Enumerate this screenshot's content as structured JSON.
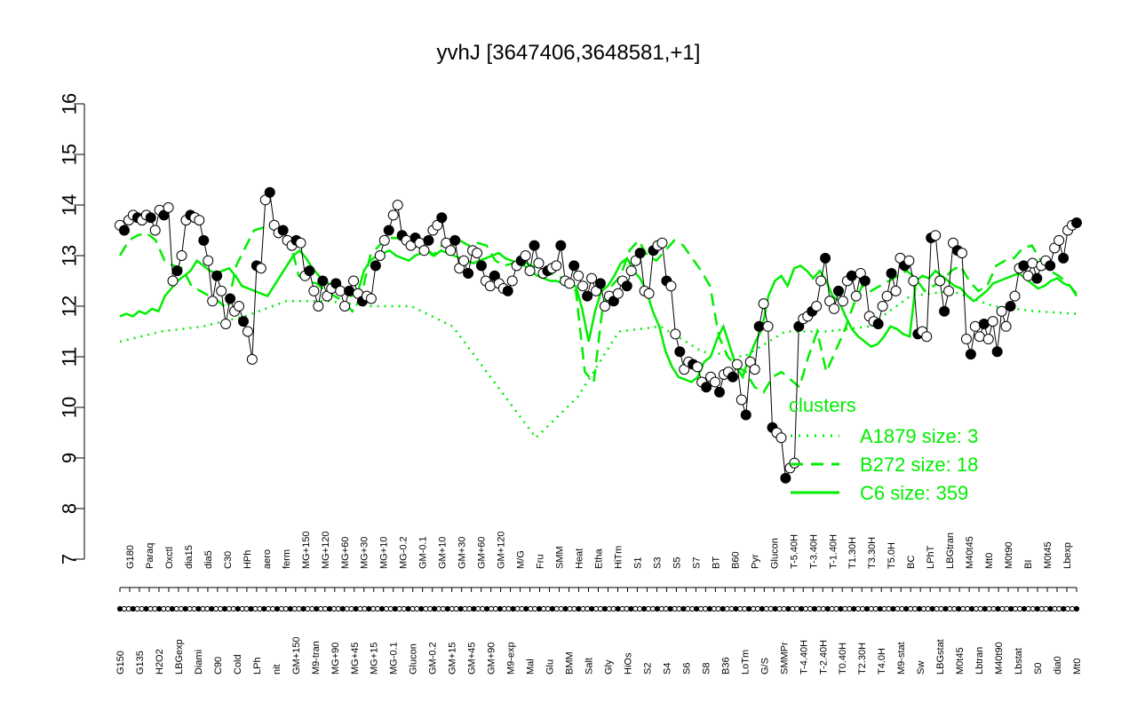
{
  "chart_data": {
    "type": "scatter",
    "title": "yvhJ [3647406,3648581,+1]",
    "xlabel": "",
    "ylabel": "",
    "ylim": [
      7,
      16
    ],
    "yticks": [
      7,
      8,
      9,
      10,
      11,
      12,
      13,
      14,
      15,
      16
    ],
    "grid": false,
    "x_tick_labels": [
      "G150",
      "G180",
      "G135",
      "Paraq",
      "H2O2",
      "Oxctl",
      "LBGexp",
      "dia15",
      "Diami",
      "dia5",
      "C90",
      "C30",
      "Cold",
      "HPh",
      "LPh",
      "aero",
      "nit",
      "ferm",
      "GM+150",
      "MG+150",
      "M9-tran",
      "MG+120",
      "MG+90",
      "MG+60",
      "MG+45",
      "MG+30",
      "MG+15",
      "MG+10",
      "MG-0.1",
      "MG-0.2",
      "Glucon",
      "GM-0.1",
      "GM-0.2",
      "GM+10",
      "GM+15",
      "GM+30",
      "GM+45",
      "GM+60",
      "GM+90",
      "GM+120",
      "M9-exp",
      "M/G",
      "Mal",
      "Fru",
      "Glu",
      "SMM",
      "BMM",
      "Heat",
      "Salt",
      "Etha",
      "Gly",
      "HiTm",
      "HiOs",
      "S1",
      "S2",
      "S3",
      "S4",
      "S5",
      "S6",
      "S7",
      "S8",
      "BT",
      "B36",
      "B60",
      "LoTm",
      "Pyr",
      "G/S",
      "Glucon",
      "SMMPr",
      "T-5.40H",
      "T-4.40H",
      "T-3.40H",
      "T-2.40H",
      "T-1.40H",
      "T0.40H",
      "T1.30H",
      "T2.30H",
      "T3.30H",
      "T4.0H",
      "T5.0H",
      "M9-stat",
      "BC",
      "Sw",
      "LPhT",
      "LBGstat",
      "LBGtran",
      "M0t45",
      "M40t45",
      "Lbtran",
      "Mt0",
      "M40t90",
      "M0t90",
      "Lbstat",
      "BI",
      "S0",
      "M0t45",
      "dia0",
      "Lbexp",
      "Mt0"
    ],
    "series": [
      {
        "kind": "points",
        "values": [
          13.6,
          13.5,
          13.7,
          13.8,
          13.75,
          13.7,
          13.8,
          13.75,
          13.5,
          13.9,
          13.8,
          13.95,
          12.5,
          12.7,
          13.0,
          13.7,
          13.8,
          13.75,
          13.7,
          13.3,
          12.9,
          12.1,
          12.6,
          12.3,
          11.65,
          12.15,
          11.9,
          12.0,
          11.7,
          11.5,
          10.95,
          12.8,
          12.75,
          14.1,
          14.25,
          13.6,
          13.45,
          13.5,
          13.3,
          13.2,
          13.3,
          13.25,
          12.6,
          12.7,
          12.3,
          12.0,
          12.5,
          12.2,
          12.35,
          12.45,
          12.3,
          12.0,
          12.3,
          12.5,
          12.25,
          12.1,
          12.2,
          12.15,
          12.8,
          13.0,
          13.3,
          13.5,
          13.8,
          14.0,
          13.4,
          13.3,
          13.2,
          13.35,
          13.25,
          13.1,
          13.3,
          13.5,
          13.6,
          13.75,
          13.25,
          13.1,
          13.3,
          12.75,
          12.9,
          12.65,
          13.1,
          13.05,
          12.8,
          12.5,
          12.4,
          12.6,
          12.45,
          12.35,
          12.3,
          12.5,
          12.8,
          12.9,
          13.0,
          12.7,
          13.2,
          12.85,
          12.65,
          12.7,
          12.75,
          12.8,
          13.2,
          12.5,
          12.45,
          12.8,
          12.6,
          12.4,
          12.2,
          12.55,
          12.3,
          12.45,
          12.0,
          12.2,
          12.1,
          12.25,
          12.5,
          12.4,
          12.7,
          12.9,
          13.05,
          12.3,
          12.25,
          13.1,
          13.2,
          13.25,
          12.5,
          12.4,
          11.45,
          11.1,
          10.75,
          10.9,
          10.85,
          10.8,
          10.5,
          10.4,
          10.6,
          10.5,
          10.3,
          10.65,
          10.7,
          10.6,
          10.85,
          10.15,
          9.85,
          10.9,
          10.75,
          11.6,
          12.05,
          11.6,
          9.6,
          9.5,
          9.4,
          8.6,
          8.8,
          8.9,
          11.6,
          11.75,
          11.8,
          11.9,
          12.0,
          12.5,
          12.95,
          12.1,
          11.95,
          12.3,
          12.1,
          12.5,
          12.6,
          12.2,
          12.65,
          12.5,
          11.8,
          11.7,
          11.65,
          12.0,
          12.2,
          12.65,
          12.3,
          12.95,
          12.8,
          12.9,
          12.5,
          11.45,
          11.5,
          11.4,
          13.35,
          13.4,
          12.5,
          11.9,
          12.3,
          13.25,
          13.1,
          13.05,
          11.35,
          11.05,
          11.6,
          11.4,
          11.65,
          11.35,
          11.7,
          11.1,
          11.9,
          11.6,
          12.0,
          12.2,
          12.75,
          12.8,
          12.6,
          12.85,
          12.55,
          12.8,
          12.9,
          12.8,
          13.15,
          13.3,
          12.95,
          13.5,
          13.6,
          13.65
        ]
      },
      {
        "kind": "line",
        "name": "C6",
        "values": [
          11.8,
          11.85,
          11.8,
          11.9,
          11.85,
          11.95,
          11.9,
          12.2,
          12.35,
          12.5,
          12.6,
          12.7,
          12.9,
          12.8,
          12.7,
          12.65,
          12.7,
          12.75,
          12.6,
          12.4,
          12.35,
          12.3,
          12.25,
          12.2,
          12.4,
          12.6,
          12.8,
          13.0,
          13.1,
          12.95,
          12.75,
          12.6,
          12.5,
          12.4,
          12.35,
          12.3,
          12.2,
          12.25,
          12.7,
          12.9,
          13.0,
          13.05,
          13.1,
          13.0,
          12.95,
          12.9,
          13.0,
          13.05,
          13.1,
          13.0,
          13.1,
          13.05,
          13.0,
          12.95,
          12.9,
          12.85,
          12.9,
          12.95,
          13.0,
          13.05,
          12.95,
          12.9,
          12.85,
          12.8,
          12.7,
          12.6,
          12.55,
          12.5,
          12.5,
          12.45,
          12.4,
          12.4,
          11.95,
          11.3,
          11.9,
          12.3,
          12.4,
          12.6,
          12.85,
          12.95,
          12.7,
          12.55,
          12.3,
          11.9,
          11.6,
          11.1,
          10.8,
          10.6,
          10.55,
          10.5,
          10.6,
          10.9,
          11.0,
          11.35,
          11.6,
          11.2,
          10.8,
          10.6,
          11.0,
          11.3,
          11.55,
          12.2,
          12.5,
          12.6,
          12.4,
          12.75,
          12.8,
          12.7,
          12.55,
          12.7,
          12.5,
          12.2,
          12.1,
          11.8,
          11.55,
          11.4,
          11.3,
          11.2,
          11.25,
          11.4,
          11.6,
          11.55,
          11.45,
          11.4,
          12.5,
          12.6,
          12.55,
          12.7,
          12.6,
          12.5,
          12.4,
          12.35,
          12.2,
          12.1,
          12.2,
          12.3,
          12.45,
          12.5,
          12.55,
          12.6,
          12.65,
          12.55,
          12.45,
          12.35,
          12.4,
          12.5,
          12.55,
          12.45,
          12.4,
          12.2
        ]
      },
      {
        "kind": "line",
        "name": "B272",
        "values": [
          13.0,
          13.3,
          13.4,
          13.45,
          13.3,
          12.9,
          12.8,
          12.75,
          12.4,
          12.3,
          12.2,
          12.1,
          11.95,
          12.8,
          13.15,
          13.5,
          13.55,
          13.6,
          13.55,
          13.3,
          12.6,
          12.5,
          12.45,
          12.3,
          12.2,
          12.1,
          11.9,
          12.2,
          13.0,
          13.2,
          13.35,
          13.35,
          13.25,
          13.2,
          13.15,
          13.0,
          13.2,
          13.25,
          13.3,
          13.2,
          13.25,
          13.2,
          12.9,
          12.8,
          12.85,
          12.9,
          12.8,
          12.75,
          12.65,
          12.6,
          12.5,
          12.3,
          10.7,
          10.5,
          12.0,
          12.4,
          12.6,
          13.1,
          13.3,
          13.0,
          12.9,
          13.1,
          13.3,
          13.2,
          12.95,
          12.7,
          12.4,
          11.4,
          11.0,
          10.8,
          10.7,
          10.4,
          10.3,
          10.6,
          10.7,
          10.55,
          10.4,
          11.0,
          11.5,
          10.7,
          11.1,
          11.5,
          12.0,
          12.4,
          12.3,
          12.4,
          12.5,
          12.6,
          12.7,
          12.55,
          12.3,
          12.4,
          12.5,
          12.7,
          12.8,
          12.5,
          12.3,
          12.4,
          12.8,
          12.9,
          12.95,
          13.15,
          13.2,
          12.9,
          12.7,
          12.6,
          12.45,
          12.25
        ]
      },
      {
        "kind": "line",
        "name": "A1879",
        "values": [
          11.3,
          11.5,
          11.6,
          11.8,
          12.1,
          12.1,
          12.0,
          12.0,
          11.6,
          10.5,
          9.4,
          10.2,
          11.5,
          11.6,
          11.1,
          11.0,
          11.5,
          11.5,
          11.6,
          12.2,
          12.3,
          12.0,
          11.9,
          11.85
        ]
      }
    ],
    "legend": {
      "title": "clusters",
      "placement": "bottom-right",
      "entries": [
        {
          "label": "A1879 size: 3",
          "style": "dotted"
        },
        {
          "label": "B272 size: 18",
          "style": "dashed"
        },
        {
          "label": "C6 size: 359",
          "style": "solid"
        }
      ]
    },
    "colors": {
      "cluster_line": "#00ee00",
      "points_fill": "#ffffff",
      "points_filled": "#000000"
    }
  }
}
